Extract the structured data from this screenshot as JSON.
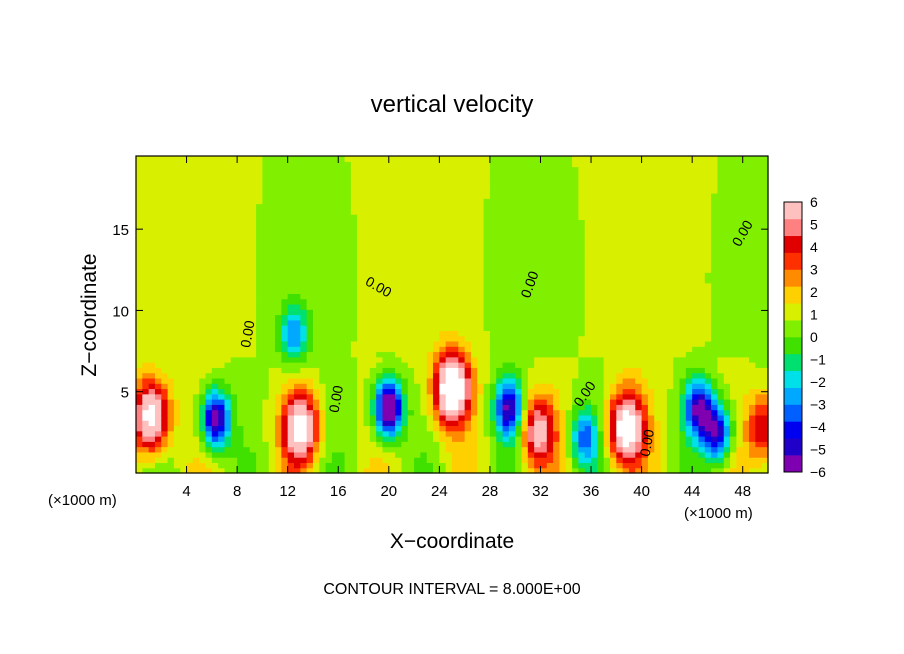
{
  "chart_data": {
    "type": "heatmap",
    "title": "vertical velocity",
    "xlabel": "X−coordinate",
    "ylabel": "Z−coordinate",
    "x_unit_left": "(×1000 m)",
    "x_unit_right": "(×1000 m)",
    "footer": "CONTOUR INTERVAL = 8.000E+00",
    "xlim": [
      0,
      50
    ],
    "ylim": [
      0,
      19.5
    ],
    "x_ticks": [
      4,
      8,
      12,
      16,
      20,
      24,
      28,
      32,
      36,
      40,
      44,
      48
    ],
    "x_tick_labels": [
      "4",
      "8",
      "12",
      "16",
      "20",
      "24",
      "28",
      "32",
      "36",
      "40",
      "44",
      "48"
    ],
    "y_ticks": [
      5,
      10,
      15
    ],
    "y_tick_labels": [
      "5",
      "10",
      "15"
    ],
    "contour_label": "0.00",
    "colorbar": {
      "min": -6,
      "max": 6,
      "tick_labels": [
        "6",
        "5",
        "4",
        "3",
        "2",
        "1",
        "0",
        "−1",
        "−2",
        "−3",
        "−4",
        "−5",
        "−6"
      ],
      "colors": [
        "#7f00b0",
        "#2000c8",
        "#0000f0",
        "#0060ff",
        "#00a8ff",
        "#00e0e8",
        "#00e070",
        "#40e000",
        "#80f000",
        "#d8f000",
        "#ffd000",
        "#ff8c00",
        "#ff3000",
        "#e00000",
        "#ff8080",
        "#ffc0c0"
      ]
    },
    "features": [
      {
        "kind": "updraft",
        "x": 25.0,
        "z": 5.2,
        "peak": 8
      },
      {
        "kind": "updraft",
        "x": 1.2,
        "z": 3.5,
        "peak": 7
      },
      {
        "kind": "updraft",
        "x": 13.0,
        "z": 2.8,
        "peak": 6.5
      },
      {
        "kind": "updraft",
        "x": 31.8,
        "z": 2.6,
        "peak": 5
      },
      {
        "kind": "updraft",
        "x": 38.8,
        "z": 2.8,
        "peak": 7
      },
      {
        "kind": "updraft",
        "x": 49.7,
        "z": 2.8,
        "peak": 4
      },
      {
        "kind": "downdraft",
        "x": 20.0,
        "z": 4.0,
        "peak": -8
      },
      {
        "kind": "downdraft",
        "x": 6.3,
        "z": 3.3,
        "peak": -7
      },
      {
        "kind": "downdraft",
        "x": 29.5,
        "z": 4.0,
        "peak": -6
      },
      {
        "kind": "downdraft",
        "x": 44.5,
        "z": 4.0,
        "peak": -6
      },
      {
        "kind": "downdraft",
        "x": 46.0,
        "z": 2.5,
        "peak": -6
      },
      {
        "kind": "downdraft",
        "x": 12.5,
        "z": 8.6,
        "peak": -3.5
      },
      {
        "kind": "downdraft",
        "x": 35.5,
        "z": 2.2,
        "peak": -4
      }
    ]
  }
}
